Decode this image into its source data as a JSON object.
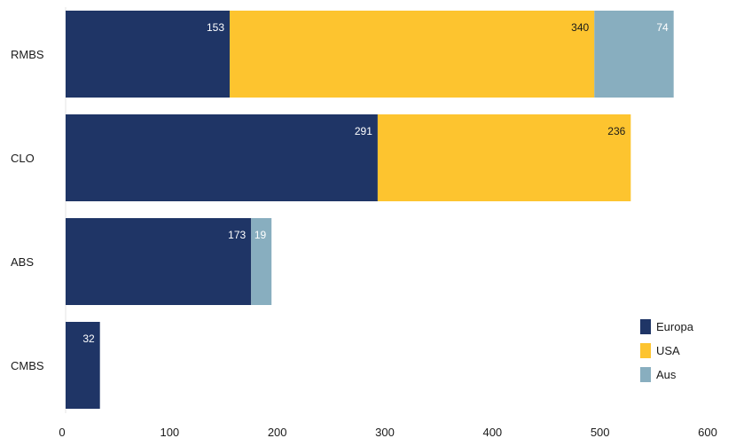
{
  "chart_data": {
    "type": "bar",
    "orientation": "horizontal",
    "stacked": true,
    "categories": [
      "RMBS",
      "CLO",
      "ABS",
      "CMBS"
    ],
    "series": [
      {
        "name": "Europa",
        "color": "#1f3566",
        "label_color": "#ffffff",
        "values": [
          153,
          291,
          173,
          32
        ]
      },
      {
        "name": "USA",
        "color": "#fdc42f",
        "label_color": "#1a1a1a",
        "values": [
          340,
          236,
          null,
          null
        ]
      },
      {
        "name": "Aus",
        "color": "#88aebf",
        "label_color": "#ffffff",
        "values": [
          74,
          null,
          19,
          null
        ]
      }
    ],
    "xlim": [
      0,
      600
    ],
    "xticks": [
      0,
      100,
      200,
      300,
      400,
      500,
      600
    ],
    "grid": false,
    "legend_position": "bottom-right",
    "title": "",
    "xlabel": "",
    "ylabel": ""
  }
}
